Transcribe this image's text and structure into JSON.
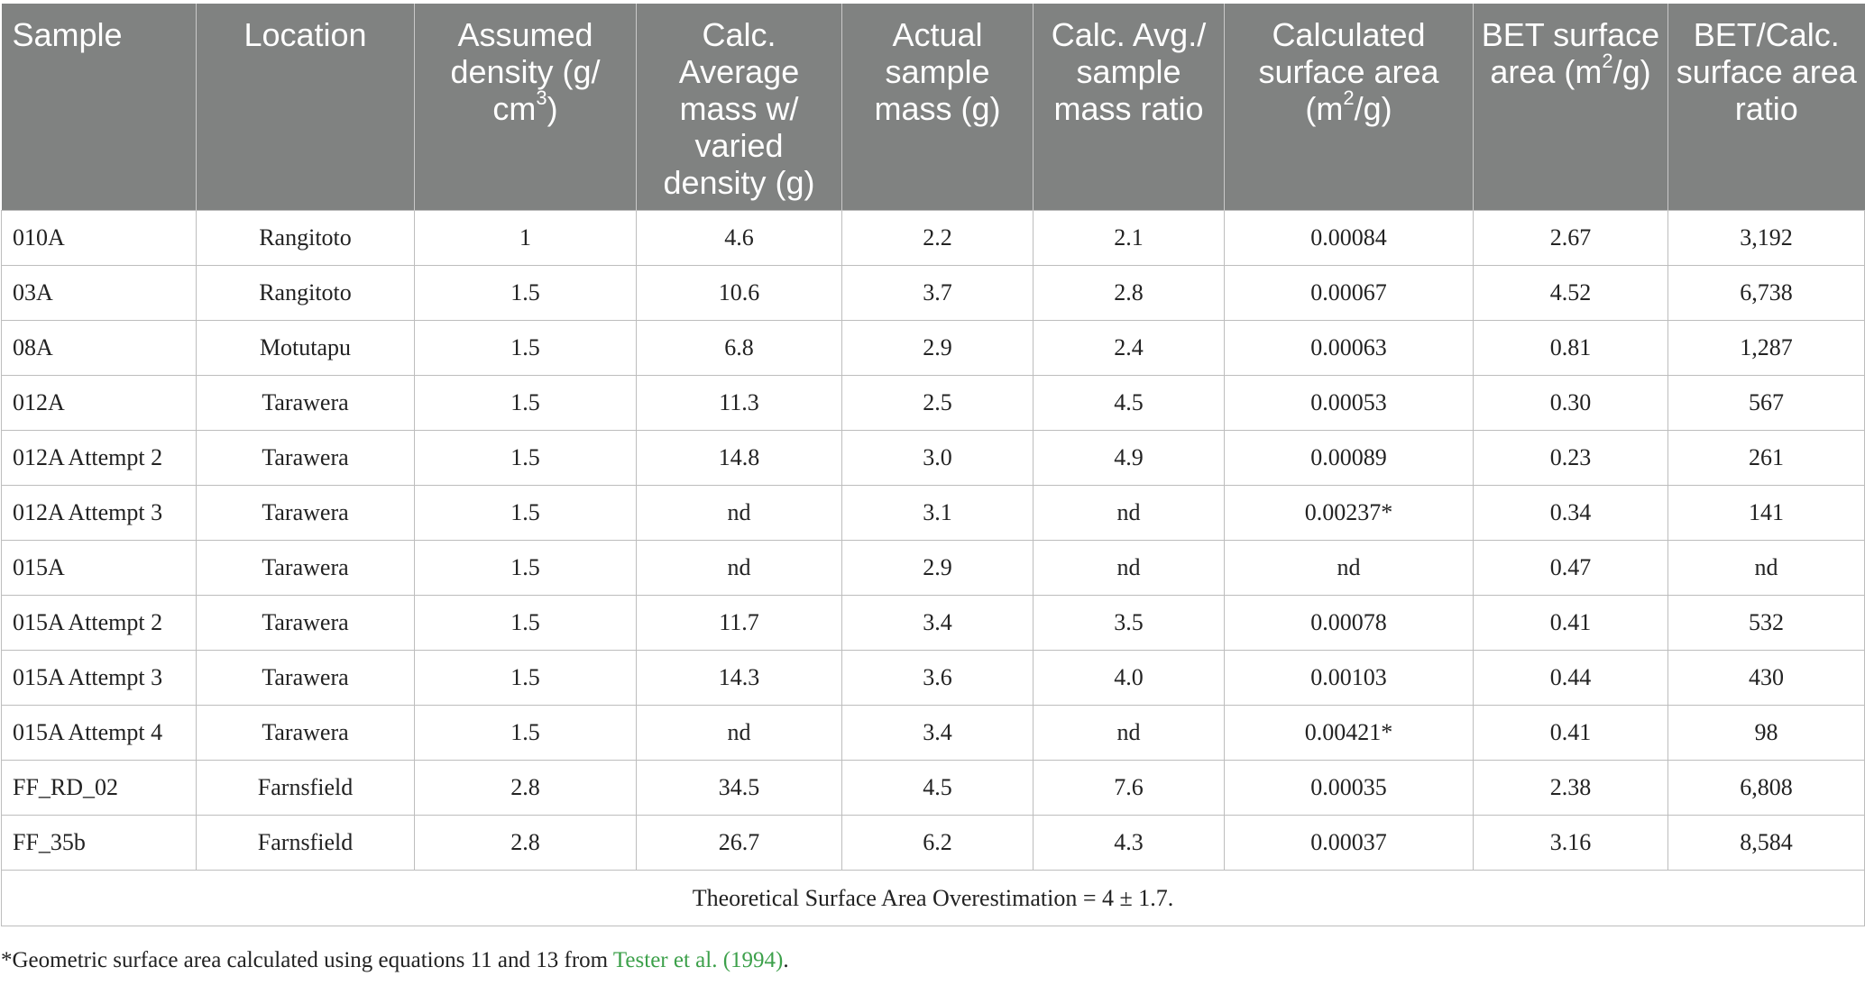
{
  "headers": [
    {
      "text": "Sample"
    },
    {
      "text": "Location"
    },
    {
      "text": "Assumed density (g/ cm",
      "sup": "3",
      "after": ")"
    },
    {
      "text": "Calc. Average mass w/ varied density (g)"
    },
    {
      "text": "Actual sample mass (g)"
    },
    {
      "text": "Calc. Avg./ sample mass ratio"
    },
    {
      "text": "Calculated surface area (m",
      "sup": "2",
      "after": "/g)"
    },
    {
      "text": "BET surface area (m",
      "sup": "2",
      "after": "/g)"
    },
    {
      "text": "BET/Calc. surface area ratio"
    }
  ],
  "rows": [
    [
      "010A",
      "Rangitoto",
      "1",
      "4.6",
      "2.2",
      "2.1",
      "0.00084",
      "2.67",
      "3,192"
    ],
    [
      "03A",
      "Rangitoto",
      "1.5",
      "10.6",
      "3.7",
      "2.8",
      "0.00067",
      "4.52",
      "6,738"
    ],
    [
      "08A",
      "Motutapu",
      "1.5",
      "6.8",
      "2.9",
      "2.4",
      "0.00063",
      "0.81",
      "1,287"
    ],
    [
      "012A",
      "Tarawera",
      "1.5",
      "11.3",
      "2.5",
      "4.5",
      "0.00053",
      "0.30",
      "567"
    ],
    [
      "012A Attempt 2",
      "Tarawera",
      "1.5",
      "14.8",
      "3.0",
      "4.9",
      "0.00089",
      "0.23",
      "261"
    ],
    [
      "012A Attempt 3",
      "Tarawera",
      "1.5",
      "nd",
      "3.1",
      "nd",
      "0.00237*",
      "0.34",
      "141"
    ],
    [
      "015A",
      "Tarawera",
      "1.5",
      "nd",
      "2.9",
      "nd",
      "nd",
      "0.47",
      "nd"
    ],
    [
      "015A Attempt 2",
      "Tarawera",
      "1.5",
      "11.7",
      "3.4",
      "3.5",
      "0.00078",
      "0.41",
      "532"
    ],
    [
      "015A Attempt 3",
      "Tarawera",
      "1.5",
      "14.3",
      "3.6",
      "4.0",
      "0.00103",
      "0.44",
      "430"
    ],
    [
      "015A Attempt 4",
      "Tarawera",
      "1.5",
      "nd",
      "3.4",
      "nd",
      "0.00421*",
      "0.41",
      "98"
    ],
    [
      "FF_RD_02",
      "Farnsfield",
      "2.8",
      "34.5",
      "4.5",
      "7.6",
      "0.00035",
      "2.38",
      "6,808"
    ],
    [
      "FF_35b",
      "Farnsfield",
      "2.8",
      "26.7",
      "6.2",
      "4.3",
      "0.00037",
      "3.16",
      "8,584"
    ]
  ],
  "summary": "Theoretical Surface Area Overestimation = 4 ± 1.7.",
  "footnote": {
    "text": "*Geometric surface area calculated using equations 11 and 13 from ",
    "link": "Tester et al. (1994)",
    "end": "."
  },
  "colors": {
    "header_bg": "#808281",
    "header_text": "#ffffff",
    "link": "#3ca04a",
    "border": "#bdbdbd"
  }
}
